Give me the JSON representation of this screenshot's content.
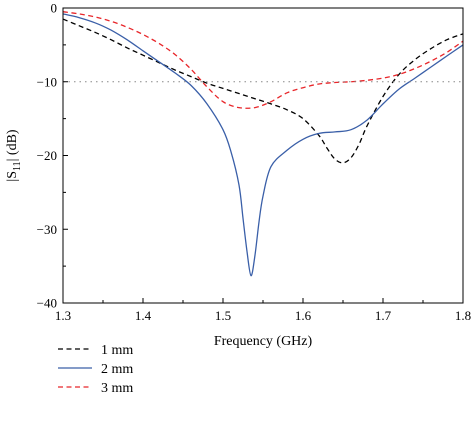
{
  "chart_data": {
    "type": "line",
    "xlabel": "Frequency (GHz)",
    "ylabel_main": "|S",
    "ylabel_sub": "11",
    "ylabel_rest": "| (dB)",
    "xlim": [
      1.3,
      1.8
    ],
    "ylim": [
      -40,
      0
    ],
    "x_ticks": [
      1.3,
      1.4,
      1.5,
      1.6,
      1.7,
      1.8
    ],
    "x_tick_labels": [
      "1.3",
      "1.4",
      "1.5",
      "1.6",
      "1.7",
      "1.8"
    ],
    "y_ticks": [
      0,
      -10,
      -20,
      -30,
      -40
    ],
    "y_tick_labels": [
      "0",
      "−10",
      "−20",
      "−30",
      "−40"
    ],
    "reference_line": {
      "y": -10,
      "style": "dotted",
      "color": "#888888"
    },
    "grid": false,
    "legend_position": "bottom-left outside plot",
    "series": [
      {
        "name": "1 mm",
        "color": "#000000",
        "dash": "dashed",
        "x": [
          1.3,
          1.32,
          1.34,
          1.36,
          1.38,
          1.4,
          1.42,
          1.44,
          1.46,
          1.48,
          1.5,
          1.52,
          1.54,
          1.56,
          1.58,
          1.6,
          1.62,
          1.63,
          1.64,
          1.65,
          1.66,
          1.67,
          1.68,
          1.7,
          1.72,
          1.74,
          1.76,
          1.78,
          1.8
        ],
        "y": [
          -1.5,
          -2.4,
          -3.3,
          -4.3,
          -5.4,
          -6.4,
          -7.4,
          -8.4,
          -9.3,
          -10.2,
          -10.9,
          -11.6,
          -12.3,
          -13.0,
          -13.8,
          -15.0,
          -17.3,
          -19.0,
          -20.5,
          -21.0,
          -20.3,
          -18.5,
          -16.0,
          -12.0,
          -9.0,
          -7.0,
          -5.5,
          -4.3,
          -3.5
        ]
      },
      {
        "name": "2 mm",
        "color": "#3a5fa8",
        "dash": "solid",
        "x": [
          1.3,
          1.32,
          1.34,
          1.36,
          1.38,
          1.4,
          1.42,
          1.44,
          1.46,
          1.48,
          1.5,
          1.51,
          1.52,
          1.525,
          1.53,
          1.535,
          1.54,
          1.545,
          1.55,
          1.56,
          1.58,
          1.6,
          1.62,
          1.64,
          1.66,
          1.68,
          1.7,
          1.72,
          1.74,
          1.76,
          1.78,
          1.8
        ],
        "y": [
          -0.8,
          -1.3,
          -2.0,
          -3.0,
          -4.3,
          -5.8,
          -7.3,
          -8.8,
          -10.5,
          -13.0,
          -16.5,
          -19.5,
          -24.0,
          -28.5,
          -33.0,
          -36.3,
          -33.5,
          -29.0,
          -25.5,
          -21.5,
          -19.3,
          -17.8,
          -17.0,
          -16.8,
          -16.5,
          -15.2,
          -13.0,
          -11.0,
          -9.5,
          -8.0,
          -6.5,
          -5.0
        ]
      },
      {
        "name": "3 mm",
        "color": "#e8262a",
        "dash": "dashed",
        "x": [
          1.3,
          1.32,
          1.34,
          1.36,
          1.38,
          1.4,
          1.42,
          1.44,
          1.46,
          1.48,
          1.5,
          1.52,
          1.54,
          1.56,
          1.58,
          1.6,
          1.62,
          1.64,
          1.66,
          1.68,
          1.7,
          1.72,
          1.74,
          1.76,
          1.78,
          1.8
        ],
        "y": [
          -0.5,
          -0.8,
          -1.2,
          -1.8,
          -2.6,
          -3.6,
          -4.8,
          -6.3,
          -8.3,
          -10.7,
          -12.7,
          -13.5,
          -13.5,
          -12.7,
          -11.5,
          -10.8,
          -10.3,
          -10.1,
          -10.0,
          -9.8,
          -9.5,
          -9.0,
          -8.2,
          -7.2,
          -6.0,
          -4.5
        ]
      }
    ]
  }
}
